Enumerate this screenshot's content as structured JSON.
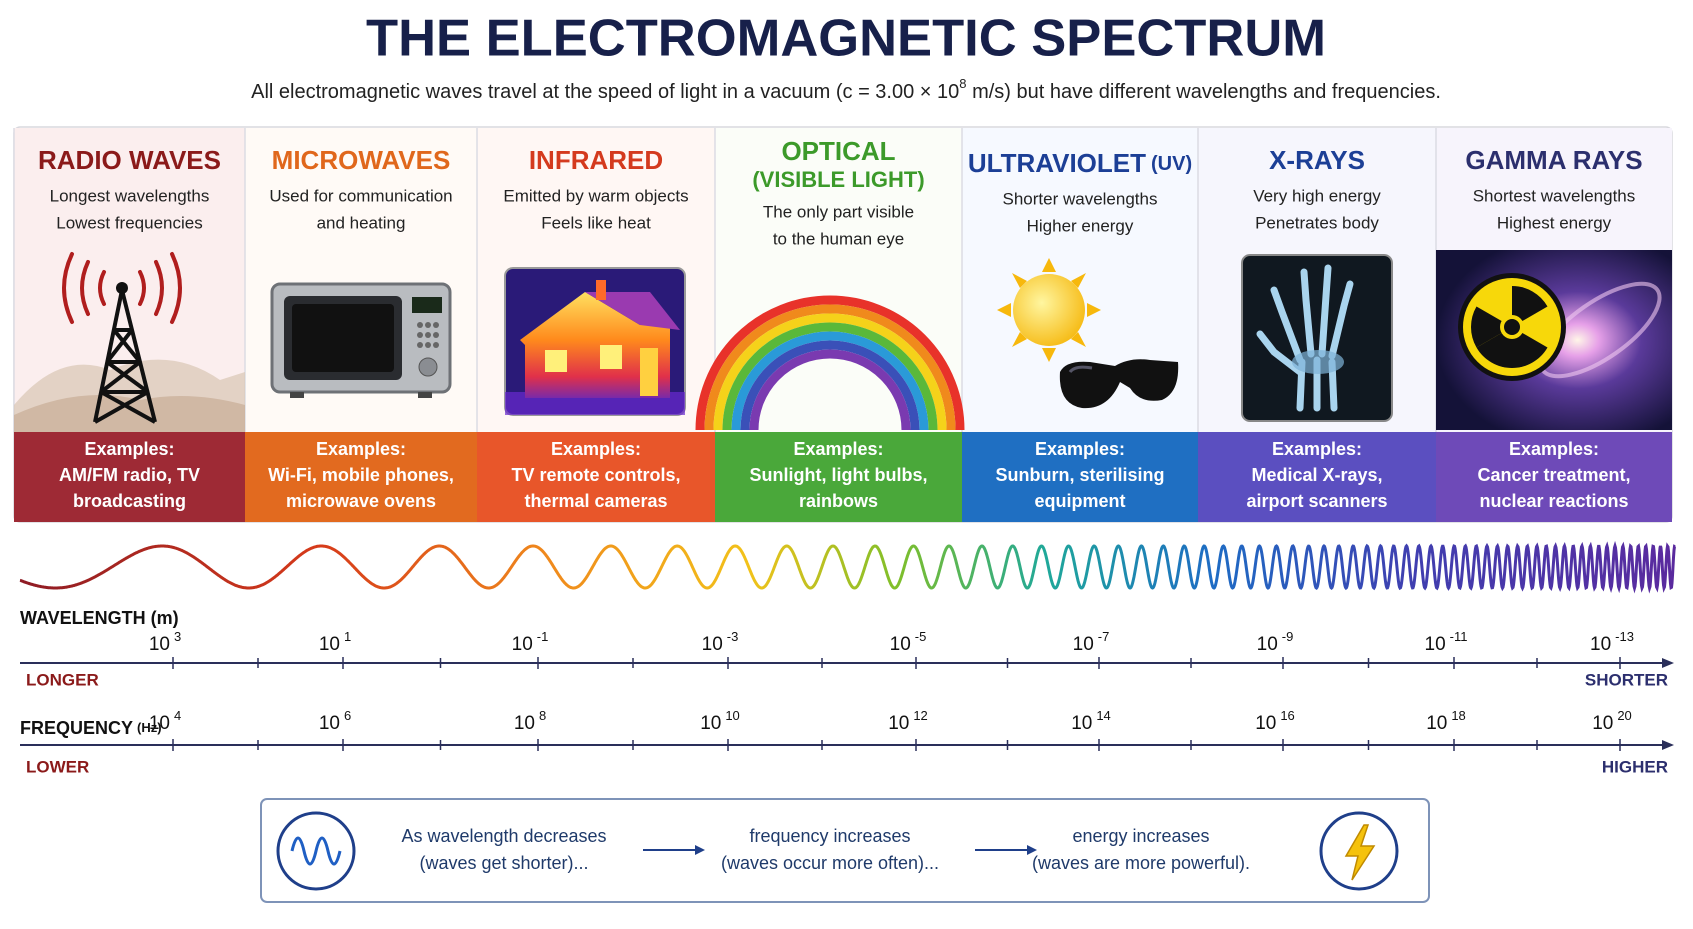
{
  "title": "THE ELECTROMAGNETIC SPECTRUM",
  "subtitle": {
    "before": "All electromagnetic waves travel at the speed of light in a vacuum (c = 3.00 × 10",
    "superscript": "8",
    "after": " m/s) but have different wavelengths and frequencies."
  },
  "bands": [
    {
      "name": "RADIO WAVES",
      "description": [
        "Longest wavelengths",
        "Lowest frequencies"
      ],
      "examples_label": "Examples:",
      "examples": [
        "AM/FM radio, TV",
        "broadcasting"
      ]
    },
    {
      "name": "MICROWAVES",
      "description": [
        "Used for communication",
        "and heating"
      ],
      "examples_label": "Examples:",
      "examples": [
        "Wi-Fi, mobile phones,",
        "microwave ovens"
      ]
    },
    {
      "name": "INFRARED",
      "description": [
        "Emitted by warm objects",
        "Feels like heat"
      ],
      "examples_label": "Examples:",
      "examples": [
        "TV remote controls,",
        "thermal cameras"
      ]
    },
    {
      "name": "OPTICAL",
      "subname": "(VISIBLE LIGHT)",
      "description": [
        "The only part visible",
        "to the human eye"
      ],
      "examples_label": "Examples:",
      "examples": [
        "Sunlight, light bulbs,",
        "rainbows"
      ]
    },
    {
      "name": "ULTRAVIOLET",
      "subname": "(UV)",
      "description": [
        "Shorter wavelengths",
        "Higher energy"
      ],
      "examples_label": "Examples:",
      "examples": [
        "Sunburn, sterilising",
        "equipment"
      ]
    },
    {
      "name": "X-RAYS",
      "description": [
        "Very high energy",
        "Penetrates body"
      ],
      "examples_label": "Examples:",
      "examples": [
        "Medical X-rays,",
        "airport scanners"
      ]
    },
    {
      "name": "GAMMA RAYS",
      "description": [
        "Shortest wavelengths",
        "Highest energy"
      ],
      "examples_label": "Examples:",
      "examples": [
        "Cancer treatment,",
        "nuclear reactions"
      ]
    }
  ],
  "wavelength_axis": {
    "label": "WAVELENGTH (m)",
    "ticks": [
      {
        "base": "10",
        "exponent": "3"
      },
      {
        "base": "10",
        "exponent": "1"
      },
      {
        "base": "10",
        "exponent": "-1"
      },
      {
        "base": "10",
        "exponent": "-3"
      },
      {
        "base": "10",
        "exponent": "-5"
      },
      {
        "base": "10",
        "exponent": "-7"
      },
      {
        "base": "10",
        "exponent": "-9"
      },
      {
        "base": "10",
        "exponent": "-11"
      },
      {
        "base": "10",
        "exponent": "-13"
      }
    ],
    "start_label": "LONGER",
    "end_label": "SHORTER"
  },
  "frequency_axis": {
    "label": "FREQUENCY",
    "unit": "(Hz)",
    "ticks": [
      {
        "base": "10",
        "exponent": "4"
      },
      {
        "base": "10",
        "exponent": "6"
      },
      {
        "base": "10",
        "exponent": "8"
      },
      {
        "base": "10",
        "exponent": "10"
      },
      {
        "base": "10",
        "exponent": "12"
      },
      {
        "base": "10",
        "exponent": "14"
      },
      {
        "base": "10",
        "exponent": "16"
      },
      {
        "base": "10",
        "exponent": "18"
      },
      {
        "base": "10",
        "exponent": "20"
      }
    ],
    "start_label": "LOWER",
    "end_label": "HIGHER"
  },
  "summary": [
    {
      "lines": [
        "As wavelength decreases",
        "(waves get shorter)..."
      ]
    },
    {
      "lines": [
        "frequency increases",
        "(waves occur more often)..."
      ]
    },
    {
      "lines": [
        "energy increases",
        "(waves are more powerful)."
      ]
    }
  ]
}
